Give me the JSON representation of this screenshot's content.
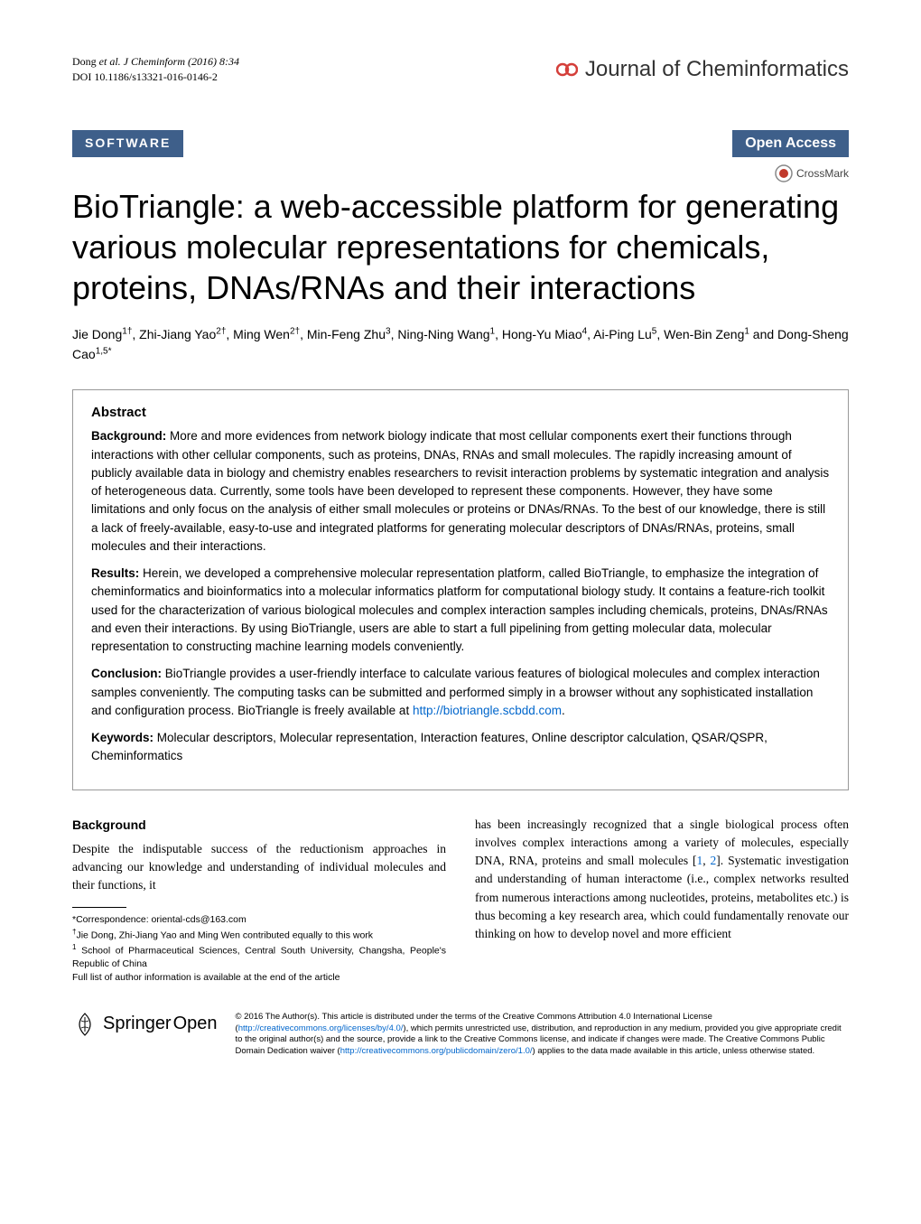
{
  "header": {
    "citation_authors": "Dong ",
    "et_al": "et al. J Cheminform (2016) 8:34",
    "doi": "DOI 10.1186/s13321-016-0146-2",
    "journal_name": "Journal of Cheminformatics",
    "journal_icon_color": "#d43f3a"
  },
  "badges": {
    "software": "SOFTWARE",
    "open_access": "Open Access",
    "crossmark": "CrossMark",
    "badge_bg": "#3e5f8a"
  },
  "title": "BioTriangle: a web-accessible platform for generating various molecular representations for chemicals, proteins, DNAs/RNAs and their interactions",
  "authors_html": "Jie Dong<sup>1†</sup>, Zhi-Jiang Yao<sup>2†</sup>, Ming Wen<sup>2†</sup>, Min-Feng Zhu<sup>3</sup>, Ning-Ning Wang<sup>1</sup>, Hong-Yu Miao<sup>4</sup>, Ai-Ping Lu<sup>5</sup>, Wen-Bin Zeng<sup>1</sup> and Dong-Sheng Cao<sup>1,5*</sup>",
  "abstract": {
    "heading": "Abstract",
    "background_label": "Background:",
    "background_text": " More and more evidences from network biology indicate that most cellular components exert their functions through interactions with other cellular components, such as proteins, DNAs, RNAs and small molecules. The rapidly increasing amount of publicly available data in biology and chemistry enables researchers to revisit interaction problems by systematic integration and analysis of heterogeneous data. Currently, some tools have been developed to represent these components. However, they have some limitations and only focus on the analysis of either small molecules or proteins or DNAs/RNAs. To the best of our knowledge, there is still a lack of freely-available, easy-to-use and integrated platforms for generating molecular descriptors of DNAs/RNAs, proteins, small molecules and their interactions.",
    "results_label": "Results:",
    "results_text": " Herein, we developed a comprehensive molecular representation platform, called BioTriangle, to emphasize the integration of cheminformatics and bioinformatics into a molecular informatics platform for computational biology study. It contains a feature-rich toolkit used for the characterization of various biological molecules and complex interaction samples including chemicals, proteins, DNAs/RNAs and even their interactions. By using BioTriangle, users are able to start a full pipelining from getting molecular data, molecular representation to constructing machine learning models conveniently.",
    "conclusion_label": "Conclusion:",
    "conclusion_text_1": " BioTriangle provides a user-friendly interface to calculate various features of biological molecules and complex interaction samples conveniently. The computing tasks can be submitted and performed simply in a browser without any sophisticated installation and configuration process. BioTriangle is freely available at ",
    "conclusion_link": "http://biotriangle.scbdd.com",
    "conclusion_text_2": ".",
    "keywords_label": "Keywords:",
    "keywords_text": " Molecular descriptors, Molecular representation, Interaction features, Online descriptor calculation, QSAR/QSPR, Cheminformatics"
  },
  "body": {
    "section_heading": "Background",
    "col1_text": "Despite the indisputable success of the reductionism approaches in advancing our knowledge and understanding of individual molecules and their functions, it",
    "col2_text_1": "has been increasingly recognized that a single biological process often involves complex interactions among a variety of molecules, especially DNA, RNA, proteins and small molecules [",
    "ref1": "1",
    "col2_text_2": ", ",
    "ref2": "2",
    "col2_text_3": "]. Systematic investigation and understanding of human interactome (i.e., complex networks resulted from numerous interactions among nucleotides, proteins, metabolites etc.) is thus becoming a key research area, which could fundamentally renovate our thinking on how to develop novel and more efficient"
  },
  "footnotes": {
    "correspondence": "*Correspondence: oriental-cds@163.com",
    "contrib": "Jie Dong, Zhi-Jiang Yao and Ming Wen contributed equally to this work",
    "affil": " School of Pharmaceutical Sciences, Central South University, Changsha, People's Republic of China",
    "fulllist": "Full list of author information is available at the end of the article"
  },
  "footer": {
    "springer": "Springer",
    "open": "Open",
    "license_1": "© 2016 The Author(s). This article is distributed under the terms of the Creative Commons Attribution 4.0 International License (",
    "license_link1": "http://creativecommons.org/licenses/by/4.0/",
    "license_2": "), which permits unrestricted use, distribution, and reproduction in any medium, provided you give appropriate credit to the original author(s) and the source, provide a link to the Creative Commons license, and indicate if changes were made. The Creative Commons Public Domain Dedication waiver (",
    "license_link2": "http://creativecommons.org/publicdomain/zero/1.0/",
    "license_3": ") applies to the data made available in this article, unless otherwise stated."
  }
}
